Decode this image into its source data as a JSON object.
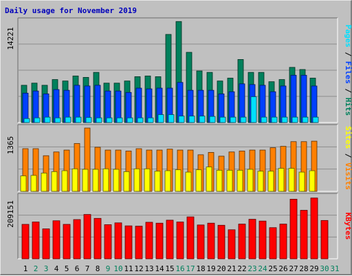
{
  "title": "Daily usage for November 2019",
  "colors": {
    "background": "#c0c0c0",
    "plot_background": "#c0c0c0",
    "grid": "#8c8c8c",
    "title": "#0000bb",
    "hits": "#00805c",
    "files": "#0040ff",
    "pages": "#00e0ff",
    "visits": "#ff8000",
    "sites": "#ffff00",
    "kbytes": "#ff0000",
    "weekend_day": "#00805c",
    "weekday_day": "#000000"
  },
  "chart_data": [
    {
      "type": "bar",
      "panel": "hits-files-pages",
      "ymax_label": "14221",
      "ylim": [
        0,
        14221
      ],
      "grid": true,
      "legend": {
        "placement": "right",
        "label_pages": "Pages",
        "sep1": " / ",
        "label_files": "Files",
        "sep2": " / ",
        "label_hits": "Hits"
      },
      "categories": [
        "1",
        "2",
        "3",
        "4",
        "5",
        "6",
        "7",
        "8",
        "9",
        "10",
        "11",
        "12",
        "13",
        "14",
        "15",
        "16",
        "17",
        "18",
        "19",
        "20",
        "21",
        "22",
        "23",
        "24",
        "25",
        "26",
        "27",
        "28",
        "29",
        "30",
        "31"
      ],
      "series": [
        {
          "name": "Hits",
          "color": "#00805c",
          "values": [
            5200,
            5500,
            5200,
            6000,
            5800,
            6500,
            6300,
            7000,
            5500,
            5500,
            5800,
            6400,
            6500,
            6400,
            12300,
            14100,
            9800,
            7200,
            7000,
            5800,
            6200,
            8800,
            7000,
            7000,
            5700,
            6000,
            7700,
            7400,
            6200,
            0,
            0
          ]
        },
        {
          "name": "Files",
          "color": "#0040ff",
          "values": [
            4100,
            4400,
            4000,
            4600,
            4500,
            5200,
            5100,
            5200,
            4400,
            4400,
            4200,
            4800,
            4700,
            4800,
            4800,
            5600,
            4500,
            4500,
            4500,
            4000,
            4300,
            5400,
            5300,
            5200,
            4300,
            5100,
            6600,
            6600,
            5100,
            0,
            0
          ]
        },
        {
          "name": "Pages",
          "color": "#00e0ff",
          "values": [
            550,
            650,
            750,
            650,
            750,
            750,
            700,
            650,
            650,
            650,
            650,
            650,
            650,
            1100,
            1100,
            900,
            900,
            900,
            850,
            750,
            750,
            750,
            3600,
            750,
            750,
            750,
            750,
            750,
            750,
            0,
            0
          ]
        }
      ]
    },
    {
      "type": "bar",
      "panel": "visits-sites",
      "ymax_label": "1365",
      "ylim": [
        0,
        1365
      ],
      "grid": true,
      "legend": {
        "placement": "right",
        "label_sites": "Sites",
        "sep": " / ",
        "label_visits": "Visits"
      },
      "categories": [
        "1",
        "2",
        "3",
        "4",
        "5",
        "6",
        "7",
        "8",
        "9",
        "10",
        "11",
        "12",
        "13",
        "14",
        "15",
        "16",
        "17",
        "18",
        "19",
        "20",
        "21",
        "22",
        "23",
        "24",
        "25",
        "26",
        "27",
        "28",
        "29",
        "30",
        "31"
      ],
      "series": [
        {
          "name": "Visits",
          "color": "#ff8000",
          "values": [
            910,
            910,
            760,
            840,
            880,
            1020,
            1350,
            940,
            880,
            880,
            860,
            910,
            880,
            880,
            900,
            880,
            880,
            780,
            830,
            750,
            840,
            860,
            880,
            880,
            930,
            960,
            1060,
            1060,
            1070,
            0,
            0
          ]
        },
        {
          "name": "Sites",
          "color": "#ffff00",
          "values": [
            330,
            340,
            390,
            420,
            440,
            480,
            470,
            470,
            480,
            470,
            420,
            480,
            480,
            430,
            440,
            460,
            410,
            460,
            520,
            450,
            450,
            450,
            470,
            430,
            430,
            490,
            490,
            410,
            440,
            0,
            0
          ]
        }
      ]
    },
    {
      "type": "bar",
      "panel": "kbytes",
      "ymax_label": "209151",
      "ylim": [
        0,
        209151
      ],
      "grid": true,
      "legend": {
        "placement": "right",
        "label_kbytes": "KBytes"
      },
      "categories": [
        "1",
        "2",
        "3",
        "4",
        "5",
        "6",
        "7",
        "8",
        "9",
        "10",
        "11",
        "12",
        "13",
        "14",
        "15",
        "16",
        "17",
        "18",
        "19",
        "20",
        "21",
        "22",
        "23",
        "24",
        "25",
        "26",
        "27",
        "28",
        "29",
        "30",
        "31"
      ],
      "series": [
        {
          "name": "KBytes",
          "color": "#ff0000",
          "values": [
            115000,
            123000,
            100000,
            127000,
            115000,
            131000,
            148000,
            135000,
            114000,
            120000,
            110000,
            109000,
            122000,
            119000,
            129000,
            123000,
            140000,
            113000,
            119000,
            112000,
            97000,
            116000,
            132000,
            126000,
            104000,
            116000,
            199000,
            162000,
            203000,
            128000,
            0
          ]
        }
      ]
    }
  ],
  "x_axis": {
    "labels": [
      "1",
      "2",
      "3",
      "4",
      "5",
      "6",
      "7",
      "8",
      "9",
      "10",
      "11",
      "12",
      "13",
      "14",
      "15",
      "16",
      "17",
      "18",
      "19",
      "20",
      "21",
      "22",
      "23",
      "24",
      "25",
      "26",
      "27",
      "28",
      "29",
      "30",
      "31"
    ],
    "weekend": [
      false,
      true,
      true,
      false,
      false,
      false,
      false,
      false,
      true,
      true,
      false,
      false,
      false,
      false,
      false,
      true,
      true,
      false,
      false,
      false,
      false,
      false,
      true,
      true,
      false,
      false,
      false,
      false,
      false,
      true,
      true
    ]
  }
}
